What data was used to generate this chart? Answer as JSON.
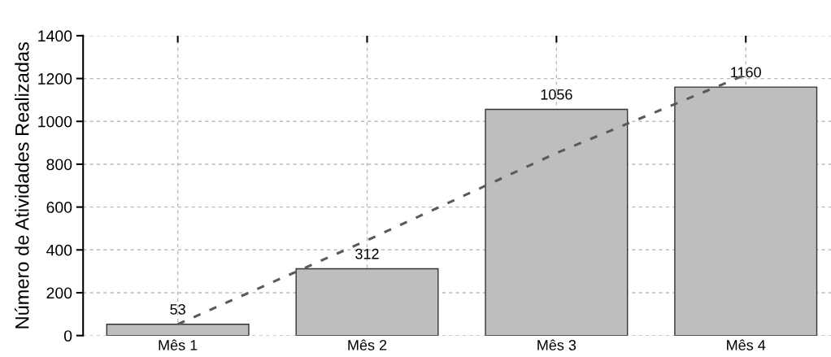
{
  "chart_data": {
    "type": "bar",
    "ylabel": "Número de Atividades Realizadas",
    "categories": [
      "Mês 1",
      "Mês 2",
      "Mês 3",
      "Mês 4"
    ],
    "series": [
      {
        "color": "#bebebe",
        "values": [
          53,
          312,
          1056,
          1160
        ],
        "value_labels": [
          "53",
          "312",
          "1056",
          "1160"
        ]
      },
      {
        "type": "line",
        "color": "#5a5a5a",
        "line_style": "dashed",
        "values": [
          53,
          445,
          852,
          1218
        ]
      }
    ],
    "ylim": [
      0,
      1400
    ],
    "yticks": [
      0,
      200,
      400,
      600,
      800,
      1000,
      1200,
      1400
    ],
    "grid": true
  }
}
